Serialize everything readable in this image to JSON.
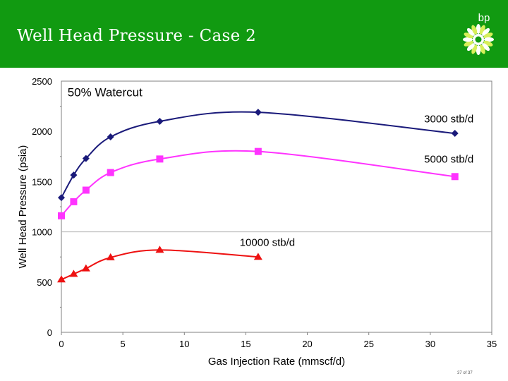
{
  "slide": {
    "title": "Well Head Pressure - Case 2",
    "brand": "bp",
    "slide_number": "37 of 37"
  },
  "colors": {
    "header": "#119a11",
    "series_3000": "#1a1a7a",
    "series_5000": "#ff33ff",
    "series_10000": "#ee1111"
  },
  "chart_data": {
    "type": "line",
    "xlabel": "Gas Injection Rate (mmscf/d)",
    "ylabel": "Well Head Pressure (psia)",
    "xlim": [
      0,
      35
    ],
    "ylim": [
      0,
      2500
    ],
    "xticks": [
      0,
      5,
      10,
      15,
      20,
      25,
      30,
      35
    ],
    "yticks": [
      0,
      500,
      1000,
      1500,
      2000,
      2500
    ],
    "annotations": [
      {
        "text": "50% Watercut",
        "x": 0.5,
        "y": 2350
      },
      {
        "text": "3000 stb/d",
        "x": 29.5,
        "y": 2090
      },
      {
        "text": "5000 stb/d",
        "x": 29.5,
        "y": 1690
      },
      {
        "text": "10000 stb/d",
        "x": 14.5,
        "y": 860
      }
    ],
    "series": [
      {
        "name": "3000 stb/d",
        "marker": "diamond",
        "x": [
          0,
          1,
          2,
          4,
          8,
          16,
          32
        ],
        "y": [
          1340,
          1565,
          1730,
          1945,
          2100,
          2190,
          1980
        ]
      },
      {
        "name": "5000 stb/d",
        "marker": "square",
        "x": [
          0,
          1,
          2,
          4,
          8,
          16,
          32
        ],
        "y": [
          1160,
          1300,
          1415,
          1590,
          1725,
          1800,
          1550
        ]
      },
      {
        "name": "10000 stb/d",
        "marker": "triangle",
        "x": [
          0,
          1,
          2,
          4,
          8,
          16
        ],
        "y": [
          525,
          580,
          635,
          745,
          820,
          750
        ]
      }
    ],
    "grid": true,
    "legend": "none"
  }
}
